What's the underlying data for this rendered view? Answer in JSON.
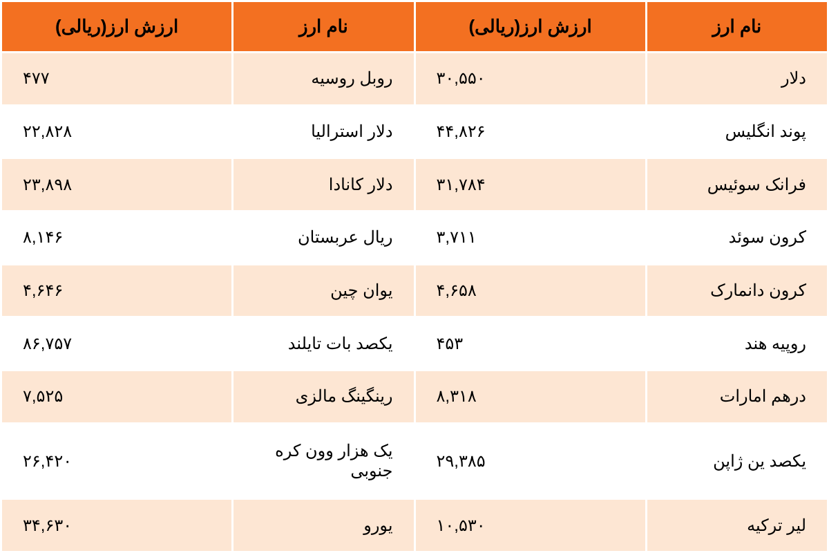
{
  "headers": {
    "name": "نام ارز",
    "value": "ارزش ارز(ریالی)"
  },
  "rows": [
    {
      "name1": "دلار",
      "val1": "۳۰,۵۵۰",
      "name2": "روبل روسیه",
      "val2": "۴۷۷",
      "alt": true
    },
    {
      "name1": "پوند انگلیس",
      "val1": "۴۴,۸۲۶",
      "name2": "دلار استرالیا",
      "val2": "۲۲,۸۲۸",
      "alt": false
    },
    {
      "name1": "فرانک سوئیس",
      "val1": "۳۱,۷۸۴",
      "name2": "دلار کانادا",
      "val2": "۲۳,۸۹۸",
      "alt": true
    },
    {
      "name1": "کرون سوئد",
      "val1": "۳,۷۱۱",
      "name2": "ریال عربستان",
      "val2": "۸,۱۴۶",
      "alt": false
    },
    {
      "name1": "کرون دانمارک",
      "val1": "۴,۶۵۸",
      "name2": "یوان چین",
      "val2": "۴,۶۴۶",
      "alt": true
    },
    {
      "name1": "روپیه هند",
      "val1": "۴۵۳",
      "name2": "یکصد بات تایلند",
      "val2": "۸۶,۷۵۷",
      "alt": false
    },
    {
      "name1": "درهم امارات",
      "val1": "۸,۳۱۸",
      "name2": "رینگینگ مالزی",
      "val2": "۷,۵۲۵",
      "alt": true
    },
    {
      "name1": "یکصد ین ژاپن",
      "val1": "۲۹,۳۸۵",
      "name2": "یک هزار وون کره جنوبی",
      "val2": "۲۶,۴۲۰",
      "alt": false
    },
    {
      "name1": "لیر ترکیه",
      "val1": "۱۰,۵۳۰",
      "name2": "یورو",
      "val2": "۳۴,۶۳۰",
      "alt": true
    }
  ],
  "colors": {
    "header_bg": "#f37021",
    "row_alt_bg": "#fde6d3",
    "row_base_bg": "#ffffff",
    "border": "#ffffff",
    "text": "#000000"
  },
  "typography": {
    "header_fontsize": 26,
    "cell_fontsize": 24,
    "font_family": "Tahoma"
  }
}
